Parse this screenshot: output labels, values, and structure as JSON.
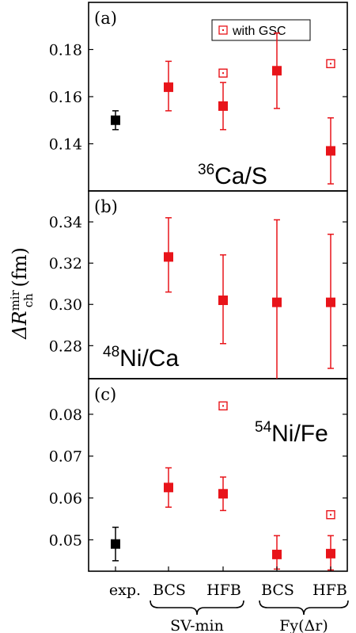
{
  "colors": {
    "red": "#e8141a",
    "black": "#000000",
    "frame": "#000000"
  },
  "legend": {
    "label": "with GSC",
    "marker": "open-square-dot"
  },
  "ylabel": {
    "main": "ΔR",
    "sup": "mir",
    "sub": "ch",
    "unit": " (fm)"
  },
  "categories": [
    "exp.",
    "BCS",
    "HFB",
    "BCS",
    "HFB"
  ],
  "groups": [
    "SV-min",
    "Fy(Δr)"
  ],
  "chart_data": [
    {
      "type": "scatter",
      "panel": "(a)",
      "label": {
        "sup": "36",
        "text": "Ca/S"
      },
      "ylim": [
        0.12,
        0.2
      ],
      "yticks": [
        "0.14",
        "0.16",
        "0.18"
      ],
      "ytick_values": [
        0.14,
        0.16,
        0.18
      ],
      "points": [
        {
          "x": "exp.",
          "y": 0.15,
          "err": [
            0.146,
            0.154
          ],
          "color": "black"
        },
        {
          "x": "SV-min BCS",
          "y": 0.164,
          "err": [
            0.154,
            0.175
          ],
          "color": "red"
        },
        {
          "x": "SV-min HFB",
          "y": 0.156,
          "err": [
            0.146,
            0.166
          ],
          "color": "red"
        },
        {
          "x": "Fy(Δr) BCS",
          "y": 0.171,
          "err": [
            0.155,
            0.187
          ],
          "color": "red"
        },
        {
          "x": "Fy(Δr) HFB",
          "y": 0.137,
          "err": [
            0.123,
            0.151
          ],
          "color": "red"
        }
      ],
      "gsc_points": [
        {
          "x": "SV-min HFB",
          "y": 0.17
        },
        {
          "x": "Fy(Δr) HFB",
          "y": 0.174
        }
      ]
    },
    {
      "type": "scatter",
      "panel": "(b)",
      "label": {
        "sup": "48",
        "text": "Ni/Ca"
      },
      "ylim": [
        0.264,
        0.355
      ],
      "yticks": [
        "0.28",
        "0.30",
        "0.32",
        "0.34"
      ],
      "ytick_values": [
        0.28,
        0.3,
        0.32,
        0.34
      ],
      "points": [
        {
          "x": "SV-min BCS",
          "y": 0.323,
          "err": [
            0.306,
            0.342
          ],
          "color": "red"
        },
        {
          "x": "SV-min HFB",
          "y": 0.302,
          "err": [
            0.281,
            0.324
          ],
          "color": "red"
        },
        {
          "x": "Fy(Δr) BCS",
          "y": 0.301,
          "err": [
            0.264,
            0.341
          ],
          "color": "red"
        },
        {
          "x": "Fy(Δr) HFB",
          "y": 0.301,
          "err": [
            0.269,
            0.334
          ],
          "color": "red"
        }
      ],
      "gsc_points": []
    },
    {
      "type": "scatter",
      "panel": "(c)",
      "label": {
        "sup": "54",
        "text": "Ni/Fe"
      },
      "ylim": [
        0.0425,
        0.0885
      ],
      "yticks": [
        "0.05",
        "0.06",
        "0.07",
        "0.08"
      ],
      "ytick_values": [
        0.05,
        0.06,
        0.07,
        0.08
      ],
      "points": [
        {
          "x": "exp.",
          "y": 0.049,
          "err": [
            0.045,
            0.053
          ],
          "color": "black"
        },
        {
          "x": "SV-min BCS",
          "y": 0.0625,
          "err": [
            0.0578,
            0.0672
          ],
          "color": "red"
        },
        {
          "x": "SV-min HFB",
          "y": 0.061,
          "err": [
            0.057,
            0.065
          ],
          "color": "red"
        },
        {
          "x": "Fy(Δr) BCS",
          "y": 0.0465,
          "err": [
            0.043,
            0.051
          ],
          "color": "red"
        },
        {
          "x": "Fy(Δr) HFB",
          "y": 0.0467,
          "err": [
            0.0428,
            0.051
          ],
          "color": "red"
        }
      ],
      "gsc_points": [
        {
          "x": "SV-min HFB",
          "y": 0.082
        },
        {
          "x": "Fy(Δr) HFB",
          "y": 0.056
        }
      ]
    }
  ]
}
